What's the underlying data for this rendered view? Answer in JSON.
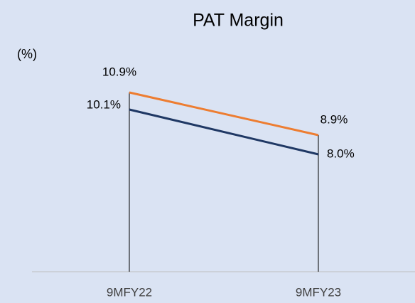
{
  "chart_data": {
    "type": "line",
    "title": "PAT Margin",
    "y_label": "(%)",
    "categories": [
      "9MFY22",
      "9MFY23"
    ],
    "series": [
      {
        "color": "#ed7d31",
        "values": [
          10.9,
          8.9
        ],
        "value_labels": [
          "10.9%",
          "8.9%"
        ]
      },
      {
        "color": "#1f3864",
        "values": [
          10.1,
          8.0
        ],
        "value_labels": [
          "10.1%",
          "8.0%"
        ]
      }
    ],
    "ylim": [
      2.5,
      12
    ],
    "grid": false
  }
}
